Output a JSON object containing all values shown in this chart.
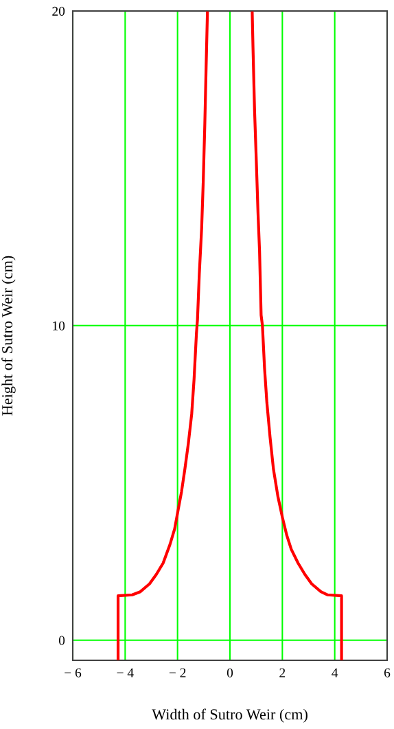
{
  "chart_data": {
    "type": "line",
    "xlabel": "Width of Sutro Weir (cm)",
    "ylabel": "Height of Sutro Weir (cm)",
    "series": [
      {
        "color": "#ff0000",
        "x": [
          4.26,
          4.26,
          3.73,
          3.47,
          3.12,
          2.86,
          2.6,
          2.34,
          2.17,
          2.0,
          1.83,
          1.66,
          1.53,
          1.41,
          1.32,
          1.24,
          1.19,
          1.13,
          1.07,
          1.01,
          0.94,
          0.88,
          0.85
        ],
        "values": [
          -0.63,
          1.41,
          1.44,
          1.54,
          1.79,
          2.09,
          2.45,
          2.89,
          3.33,
          3.91,
          4.57,
          5.44,
          6.46,
          7.55,
          8.65,
          10.0,
          10.33,
          12.37,
          13.61,
          15.14,
          16.83,
          18.83,
          19.94
        ]
      },
      {
        "color": "#ff0000",
        "x": [
          -4.27,
          -4.27,
          -3.73,
          -3.42,
          -3.07,
          -2.81,
          -2.55,
          -2.29,
          -2.11,
          -1.98,
          -1.85,
          -1.72,
          -1.59,
          -1.46,
          -1.37,
          -1.28,
          -1.24,
          -1.17,
          -1.08,
          -1.02,
          -0.96,
          -0.91,
          -0.86
        ],
        "values": [
          -0.63,
          1.41,
          1.44,
          1.54,
          1.79,
          2.09,
          2.45,
          3.04,
          3.54,
          4.13,
          4.71,
          5.44,
          6.24,
          7.19,
          8.29,
          9.74,
          10.18,
          11.64,
          13.1,
          14.56,
          16.39,
          18.2,
          19.94
        ]
      }
    ],
    "xlim": [
      -6,
      6
    ],
    "ylim": [
      -0.64,
      20
    ],
    "xticks": [
      {
        "value": -6,
        "label": "− 6"
      },
      {
        "value": -4,
        "label": "− 4"
      },
      {
        "value": -2,
        "label": "− 2"
      },
      0,
      2,
      4,
      6
    ],
    "yticks": [
      0,
      10,
      20
    ],
    "grid": true,
    "line_style": "solid",
    "marker": "none"
  }
}
